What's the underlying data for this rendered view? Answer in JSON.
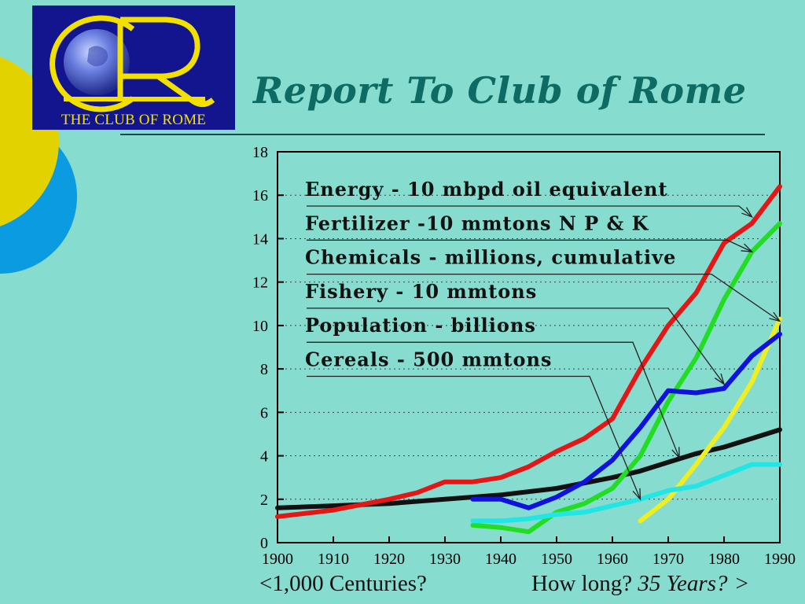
{
  "logo": {
    "text": "THE CLUB OF ROME",
    "monogram": "CR"
  },
  "title": "Report To Club of Rome",
  "captions": {
    "left": "<1,000 Centuries?",
    "right_plain": "How long? ",
    "right_italic": "35 Years?",
    "right_arrow": ">"
  },
  "chart_data": {
    "type": "line",
    "title": "",
    "xlabel": "",
    "ylabel": "",
    "xlim": [
      1900,
      1990
    ],
    "ylim": [
      0,
      18
    ],
    "xticks": [
      1900,
      1910,
      1920,
      1930,
      1940,
      1950,
      1960,
      1970,
      1980,
      1990
    ],
    "yticks": [
      0,
      2,
      4,
      6,
      8,
      10,
      12,
      14,
      16,
      18
    ],
    "grid": "dotted-horizontal",
    "legend_placement": "top-left",
    "series": [
      {
        "name": "Energy - 10 mbpd oil equivalent",
        "color": "#e51616",
        "points": [
          [
            1900,
            1.2
          ],
          [
            1910,
            1.5
          ],
          [
            1920,
            2.0
          ],
          [
            1925,
            2.3
          ],
          [
            1930,
            2.8
          ],
          [
            1935,
            2.8
          ],
          [
            1940,
            3.0
          ],
          [
            1945,
            3.5
          ],
          [
            1950,
            4.2
          ],
          [
            1955,
            4.8
          ],
          [
            1960,
            5.7
          ],
          [
            1965,
            8.0
          ],
          [
            1970,
            10.0
          ],
          [
            1975,
            11.5
          ],
          [
            1980,
            13.8
          ],
          [
            1985,
            14.7
          ],
          [
            1990,
            16.4
          ]
        ]
      },
      {
        "name": "Fertilizer -10 mmtons N P & K",
        "color": "#22dd22",
        "points": [
          [
            1935,
            0.8
          ],
          [
            1940,
            0.7
          ],
          [
            1945,
            0.5
          ],
          [
            1950,
            1.4
          ],
          [
            1955,
            1.8
          ],
          [
            1960,
            2.5
          ],
          [
            1965,
            4.0
          ],
          [
            1970,
            6.5
          ],
          [
            1975,
            8.5
          ],
          [
            1980,
            11.2
          ],
          [
            1985,
            13.4
          ],
          [
            1990,
            14.7
          ]
        ]
      },
      {
        "name": "Chemicals - millions, cumulative",
        "color": "#eeee22",
        "points": [
          [
            1965,
            1.0
          ],
          [
            1970,
            2.0
          ],
          [
            1975,
            3.6
          ],
          [
            1980,
            5.3
          ],
          [
            1985,
            7.4
          ],
          [
            1990,
            10.3
          ]
        ]
      },
      {
        "name": "Fishery - 10 mmtons",
        "color": "#1111dd",
        "points": [
          [
            1935,
            2.0
          ],
          [
            1940,
            2.0
          ],
          [
            1945,
            1.6
          ],
          [
            1950,
            2.1
          ],
          [
            1955,
            2.8
          ],
          [
            1960,
            3.8
          ],
          [
            1965,
            5.3
          ],
          [
            1970,
            7.0
          ],
          [
            1975,
            6.9
          ],
          [
            1980,
            7.1
          ],
          [
            1985,
            8.6
          ],
          [
            1990,
            9.6
          ]
        ]
      },
      {
        "name": "Population - billions",
        "color": "#111111",
        "points": [
          [
            1900,
            1.6
          ],
          [
            1910,
            1.7
          ],
          [
            1920,
            1.8
          ],
          [
            1930,
            2.0
          ],
          [
            1940,
            2.2
          ],
          [
            1950,
            2.5
          ],
          [
            1960,
            3.0
          ],
          [
            1965,
            3.3
          ],
          [
            1970,
            3.7
          ],
          [
            1975,
            4.1
          ],
          [
            1980,
            4.4
          ],
          [
            1985,
            4.8
          ],
          [
            1990,
            5.2
          ]
        ]
      },
      {
        "name": "Cereals - 500 mmtons",
        "color": "#22e6e6",
        "points": [
          [
            1935,
            1.0
          ],
          [
            1940,
            1.0
          ],
          [
            1945,
            1.1
          ],
          [
            1950,
            1.3
          ],
          [
            1955,
            1.4
          ],
          [
            1960,
            1.7
          ],
          [
            1965,
            2.0
          ],
          [
            1970,
            2.4
          ],
          [
            1975,
            2.6
          ],
          [
            1980,
            3.1
          ],
          [
            1985,
            3.6
          ],
          [
            1990,
            3.6
          ]
        ]
      }
    ]
  }
}
